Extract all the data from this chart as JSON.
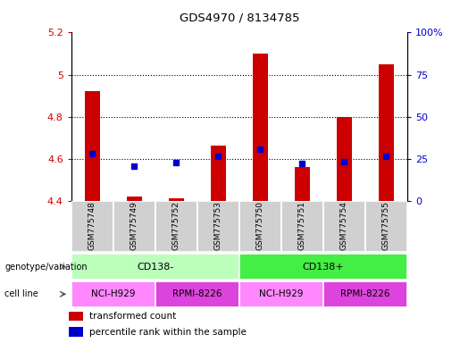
{
  "title": "GDS4970 / 8134785",
  "samples": [
    "GSM775748",
    "GSM775749",
    "GSM775752",
    "GSM775753",
    "GSM775750",
    "GSM775751",
    "GSM775754",
    "GSM775755"
  ],
  "red_values": [
    4.92,
    4.42,
    4.41,
    4.66,
    5.1,
    4.56,
    4.8,
    5.05
  ],
  "blue_values": [
    4.625,
    4.565,
    4.58,
    4.61,
    4.645,
    4.575,
    4.585,
    4.61
  ],
  "ylim_left": [
    4.4,
    5.2
  ],
  "ylim_right": [
    0,
    100
  ],
  "yticks_left": [
    4.4,
    4.6,
    4.8,
    5.0,
    5.2
  ],
  "yticks_right": [
    0,
    25,
    50,
    75,
    100
  ],
  "ytick_labels_left": [
    "4.4",
    "4.6",
    "4.8",
    "5",
    "5.2"
  ],
  "ytick_labels_right": [
    "0",
    "25",
    "50",
    "75",
    "100%"
  ],
  "bar_bottom": 4.4,
  "bar_color": "#cc0000",
  "dot_color": "#0000cc",
  "genotype_groups": [
    {
      "label": "CD138-",
      "start": 0,
      "end": 4,
      "color": "#bbffbb"
    },
    {
      "label": "CD138+",
      "start": 4,
      "end": 8,
      "color": "#44ee44"
    }
  ],
  "cell_line_groups": [
    {
      "label": "NCI-H929",
      "start": 0,
      "end": 2,
      "color": "#ff88ff"
    },
    {
      "label": "RPMI-8226",
      "start": 2,
      "end": 4,
      "color": "#dd44dd"
    },
    {
      "label": "NCI-H929",
      "start": 4,
      "end": 6,
      "color": "#ff88ff"
    },
    {
      "label": "RPMI-8226",
      "start": 6,
      "end": 8,
      "color": "#dd44dd"
    }
  ],
  "genotype_label": "genotype/variation",
  "cell_line_label": "cell line",
  "legend_red": "transformed count",
  "legend_blue": "percentile rank within the sample",
  "bar_width": 0.35
}
